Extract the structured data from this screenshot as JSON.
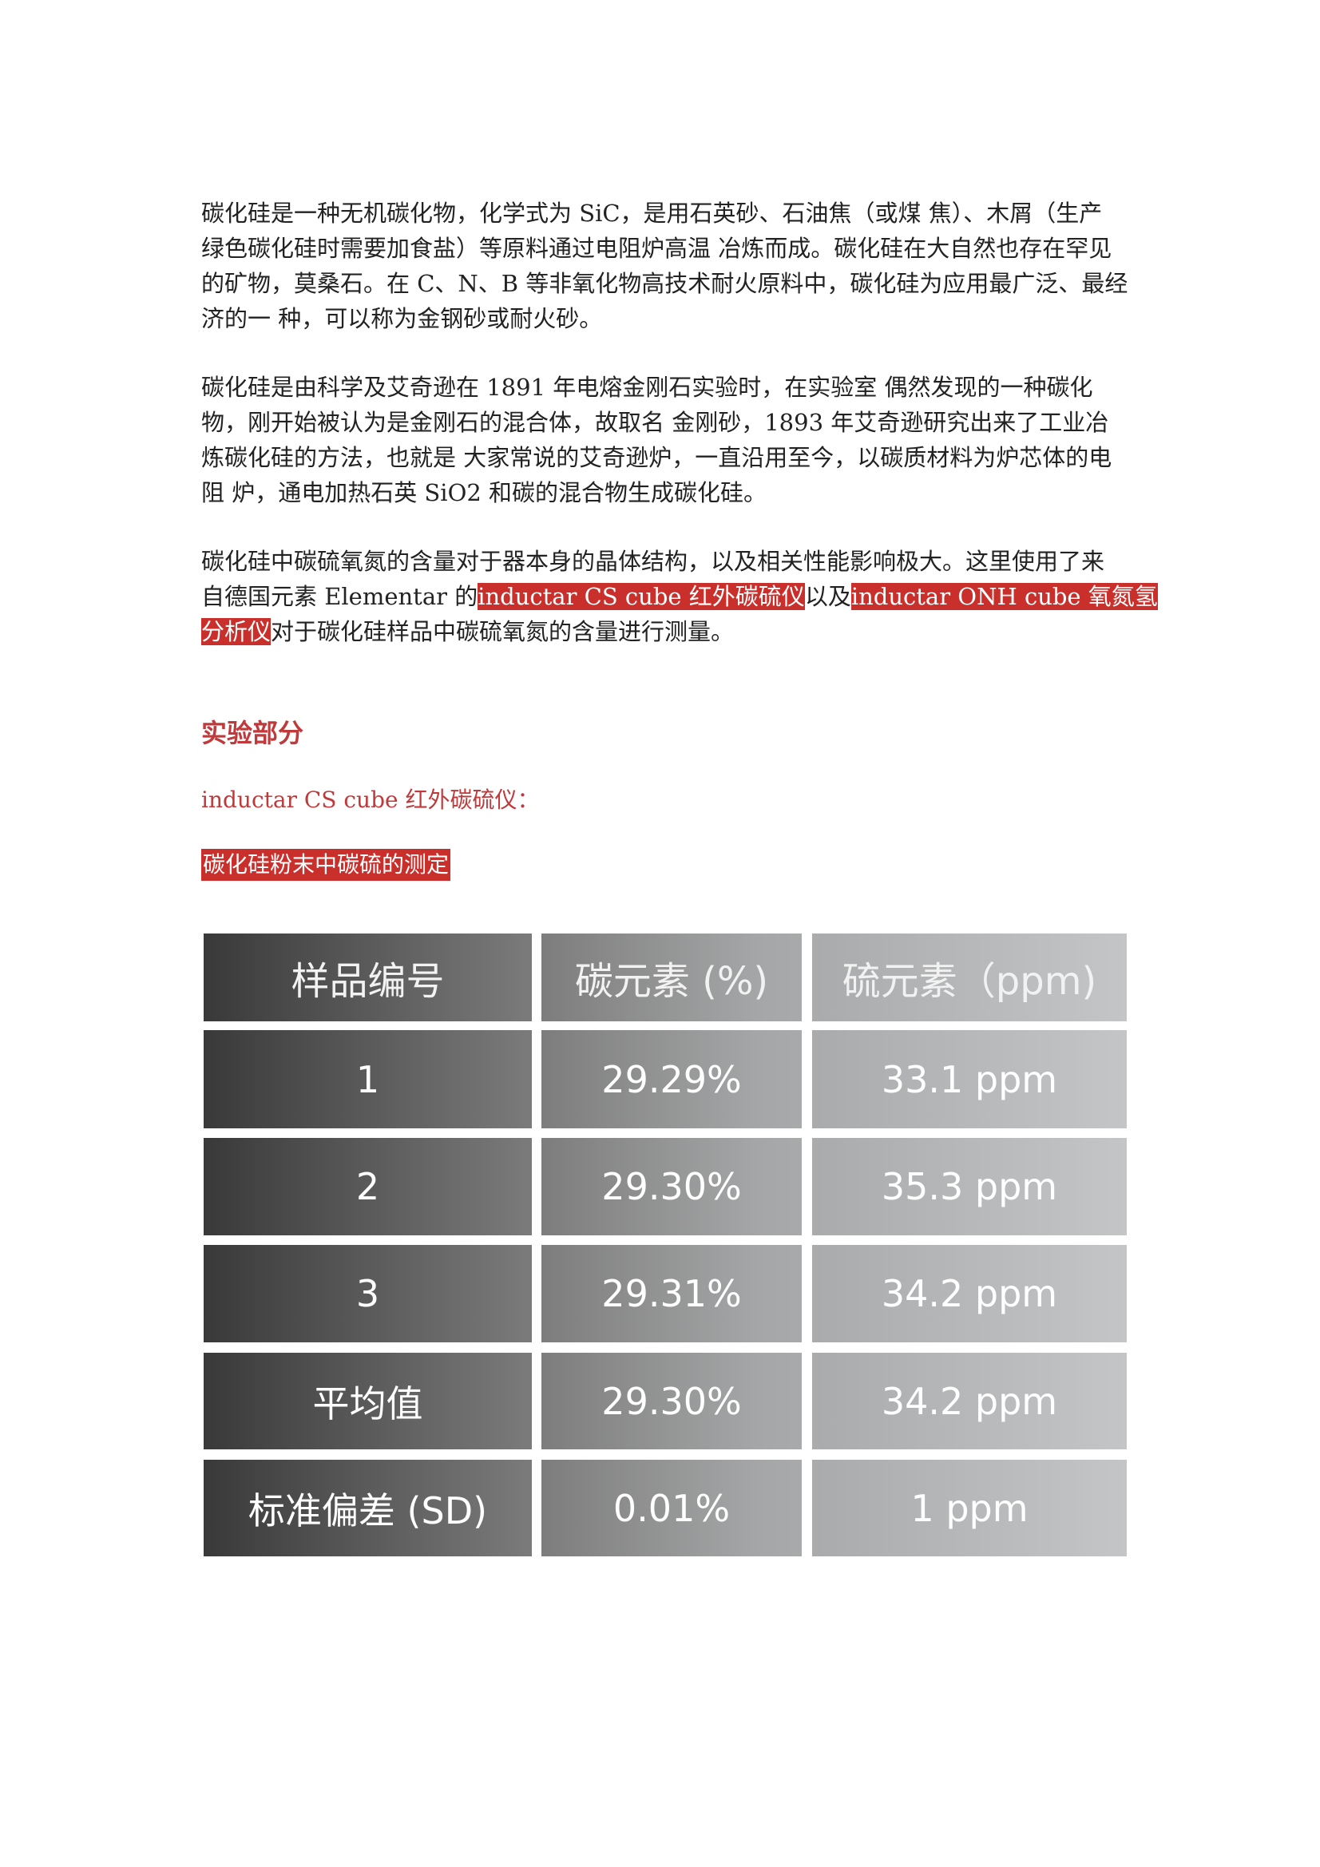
{
  "paragraphs": [
    {
      "lines": [
        "碳化硅是一种无机碳化物，化学式为 SiC，是用石英砂、石油焦（或煤 焦）、木屑（生产",
        "绿色碳化硅时需要加食盐）等原料通过电阻炉高温 冶炼而成。碳化硅在大自然也存在罕见",
        "的矿物，莫桑石。在 C、N、B 等非氧化物高技术耐火原料中，碳化硅为应用最广泛、最经",
        "济的一 种，可以称为金钢砂或耐火砂。"
      ]
    },
    {
      "lines": [
        "碳化硅是由科学及艾奇逊在 1891 年电熔金刚石实验时，在实验室 偶然发现的一种碳化",
        "物，刚开始被认为是金刚石的混合体，故取名 金刚砂，1893 年艾奇逊研究出来了工业冶",
        "炼碳化硅的方法，也就是 大家常说的艾奇逊炉，一直沿用至今，以碳质材料为炉芯体的电",
        "阻 炉，通电加热石英 SiO2 和碳的混合物生成碳化硅。"
      ]
    }
  ],
  "paragraph3": {
    "line1": "碳化硅中碳硫氧氮的含量对于器本身的晶体结构，以及相关性能影响极大。这里使用了来",
    "line2_a": "自德国元素 Elementar 的",
    "line2_hl1": "inductar CS cube 红外碳硫仪",
    "line2_b": "以及",
    "line2_hl2": "inductar ONH cube 氧氮氢",
    "line3_hl": "分析仪",
    "line3_b": "对于碳化硅样品中碳硫氧氮的含量进行测量。"
  },
  "section_heading": "实验部分",
  "instrument_title": "inductar CS cube 红外碳硫仪：",
  "test_label": "碳化硅粉末中碳硫的测定",
  "colors": {
    "accent_red": "#c9302c",
    "heading_red": "#c0393b"
  },
  "table": {
    "headers": [
      "样品编号",
      "碳元素 (%)",
      "硫元素（ppm)"
    ],
    "rows": [
      [
        "1",
        "29.29%",
        "33.1 ppm"
      ],
      [
        "2",
        "29.30%",
        "35.3 ppm"
      ],
      [
        "3",
        "29.31%",
        "34.2 ppm"
      ],
      [
        "平均值",
        "29.30%",
        "34.2 ppm"
      ],
      [
        "标准偏差 (SD)",
        "0.01%",
        "1 ppm"
      ]
    ]
  }
}
